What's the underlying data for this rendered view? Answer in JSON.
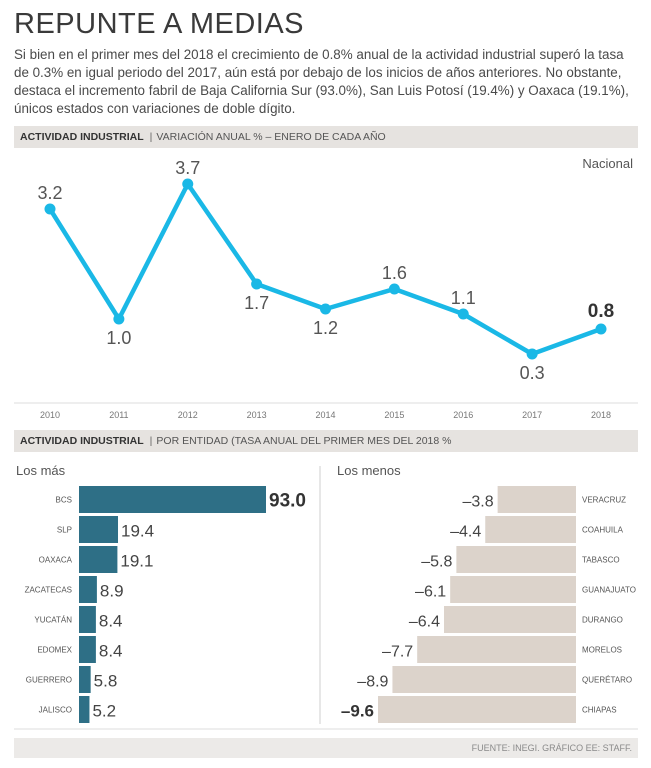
{
  "header": {
    "title": "REPUNTE A MEDIAS",
    "intro": "Si bien en el primer mes del 2018 el crecimiento de 0.8% anual de la actividad industrial superó la tasa de 0.3% en igual periodo del 2017, aún está por debajo de los inicios de años anteriores. No obstante, destaca el incremento fabril de Baja California Sur (93.0%), San Luis Potosí (19.4%) y Oaxaca (19.1%), únicos estados con variaciones de doble dígito."
  },
  "section1": {
    "bold": "ACTIVIDAD INDUSTRIAL",
    "sep": "|",
    "sub": "VARIACIÓN ANUAL % – ENERO DE CADA AÑO"
  },
  "section2": {
    "bold": "ACTIVIDAD INDUSTRIAL",
    "sep": "|",
    "sub": "POR ENTIDAD (TASA ANUAL DEL PRIMER MES DEL 2018 %"
  },
  "columns": {
    "left_title": "Los más",
    "right_title": "Los menos"
  },
  "source": "FUENTE: INEGI.  GRÁFICO EE: STAFF.",
  "colors": {
    "line": "#1ab8e6",
    "bar_top": "#2e6f86",
    "bar_bottom": "#dcd3cb",
    "bg_band": "#e6e3e0"
  },
  "chart_data": [
    {
      "type": "line",
      "title": "ACTIVIDAD INDUSTRIAL | VARIACIÓN ANUAL % – ENERO DE CADA AÑO",
      "series_name": "Nacional",
      "x": [
        "2010",
        "2011",
        "2012",
        "2013",
        "2014",
        "2015",
        "2016",
        "2017",
        "2018"
      ],
      "y": [
        3.2,
        1.0,
        3.7,
        1.7,
        1.2,
        1.6,
        1.1,
        0.3,
        0.8
      ],
      "labels": [
        "3.2",
        "1.0",
        "3.7",
        "1.7",
        "1.2",
        "1.6",
        "1.1",
        "0.3",
        "0.8"
      ],
      "ylim": [
        0,
        4
      ]
    },
    {
      "type": "bar",
      "title": "Los más",
      "categories": [
        "BCS",
        "SLP",
        "OAXACA",
        "ZACATECAS",
        "YUCATÁN",
        "EDOMEX",
        "GUERRERO",
        "JALISCO"
      ],
      "values": [
        93.0,
        19.4,
        19.1,
        8.9,
        8.4,
        8.4,
        5.8,
        5.2
      ],
      "labels": [
        "93.0",
        "19.4",
        "19.1",
        "8.9",
        "8.4",
        "8.4",
        "5.8",
        "5.2"
      ],
      "xlim": [
        0,
        93
      ]
    },
    {
      "type": "bar",
      "title": "Los menos",
      "categories": [
        "VERACRUZ",
        "COAHUILA",
        "TABASCO",
        "GUANAJUATO",
        "DURANGO",
        "MORELOS",
        "QUERÉTARO",
        "CHIAPAS"
      ],
      "values": [
        -3.8,
        -4.4,
        -5.8,
        -6.1,
        -6.4,
        -7.7,
        -8.9,
        -9.6
      ],
      "labels": [
        "–3.8",
        "–4.4",
        "–5.8",
        "–6.1",
        "–6.4",
        "–7.7",
        "–8.9",
        "–9.6"
      ],
      "xlim": [
        -9.6,
        0
      ]
    }
  ]
}
